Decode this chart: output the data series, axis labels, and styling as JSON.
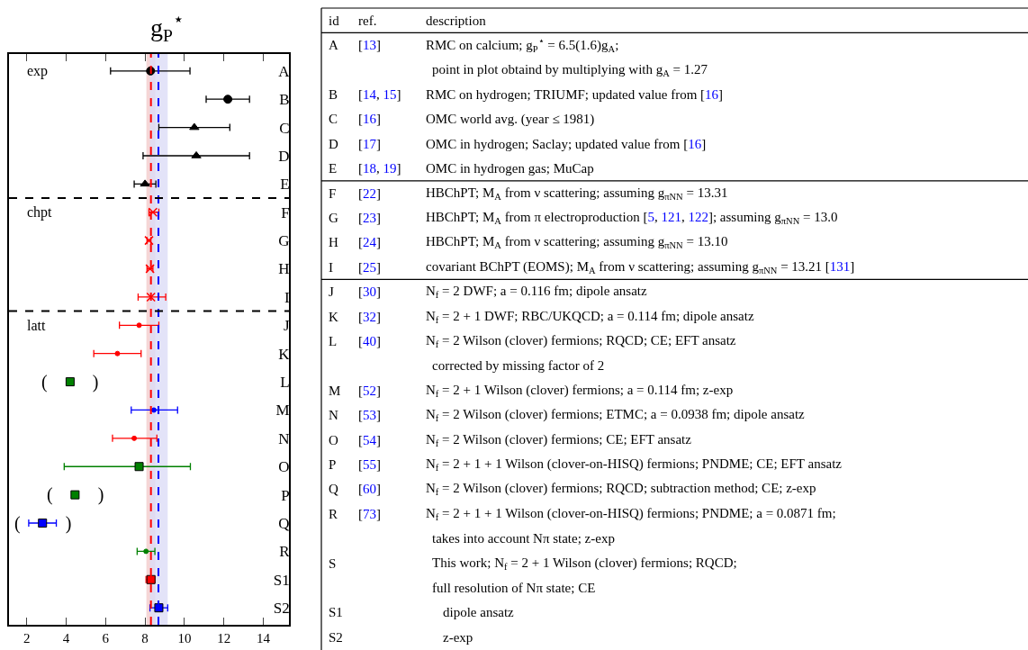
{
  "chart_data": [
    {
      "type": "scatter",
      "orientation": "horizontal",
      "title": "g$_{P}$$^{⋆}$",
      "categories": [
        "A",
        "B",
        "C",
        "D",
        "E",
        "F",
        "G",
        "H",
        "I",
        "J",
        "K",
        "L",
        "M",
        "N",
        "O",
        "P",
        "Q",
        "R",
        "S1",
        "S2"
      ],
      "xlim": [
        1.1,
        15.3
      ],
      "xticks": [
        2,
        4,
        6,
        8,
        10,
        12,
        14
      ],
      "grid": false,
      "series": [
        {
          "color": "#000000",
          "marker": "circle",
          "values": [
            8.28,
            12.2,
            null,
            null,
            null,
            null,
            null,
            null,
            null,
            null,
            null,
            null,
            null,
            null,
            null,
            null,
            null,
            null,
            null,
            null
          ],
          "errors": [
            [
              6.25,
              10.28
            ],
            [
              11.1,
              13.3
            ],
            null,
            null,
            null,
            null,
            null,
            null,
            null,
            null,
            null,
            null,
            null,
            null,
            null,
            null,
            null,
            null,
            null,
            null
          ]
        },
        {
          "color": "#000000",
          "marker": "triangle",
          "values": [
            null,
            null,
            10.5,
            10.6,
            8.0,
            null,
            null,
            null,
            null,
            null,
            null,
            null,
            null,
            null,
            null,
            null,
            null,
            null,
            null,
            null
          ],
          "errors": [
            null,
            null,
            [
              8.7,
              12.3
            ],
            [
              7.9,
              13.3
            ],
            [
              7.45,
              8.55
            ],
            null,
            null,
            null,
            null,
            null,
            null,
            null,
            null,
            null,
            null,
            null,
            null,
            null,
            null,
            null
          ]
        },
        {
          "color": "#ff0000",
          "marker": "cross",
          "values": [
            null,
            null,
            null,
            null,
            null,
            8.4,
            8.2,
            8.25,
            8.3,
            null,
            null,
            null,
            null,
            null,
            null,
            null,
            null,
            null,
            null,
            null
          ],
          "errors": [
            null,
            null,
            null,
            null,
            null,
            [
              8.2,
              8.7
            ],
            [
              8.1,
              8.3
            ],
            [
              8.1,
              8.4
            ],
            [
              7.65,
              9.05
            ],
            null,
            null,
            null,
            null,
            null,
            null,
            null,
            null,
            null,
            null,
            null
          ]
        },
        {
          "color": "#ff0000",
          "marker": "circle",
          "values": [
            null,
            null,
            null,
            null,
            null,
            null,
            null,
            null,
            null,
            7.7,
            6.6,
            null,
            null,
            7.45,
            null,
            null,
            null,
            null,
            null,
            null
          ],
          "errors": [
            null,
            null,
            null,
            null,
            null,
            null,
            null,
            null,
            null,
            [
              6.7,
              8.7
            ],
            [
              5.4,
              7.8
            ],
            null,
            null,
            [
              6.35,
              8.6
            ],
            null,
            null,
            null,
            null,
            null,
            null
          ]
        },
        {
          "color": "#0000ff",
          "marker": "circle",
          "values": [
            null,
            null,
            null,
            null,
            null,
            null,
            null,
            null,
            null,
            null,
            null,
            null,
            8.45,
            null,
            null,
            null,
            null,
            null,
            null,
            null
          ],
          "errors": [
            null,
            null,
            null,
            null,
            null,
            null,
            null,
            null,
            null,
            null,
            null,
            null,
            [
              7.3,
              9.65
            ],
            null,
            null,
            null,
            null,
            null,
            null,
            null
          ]
        },
        {
          "color": "#008000",
          "marker": "square",
          "values": [
            null,
            null,
            null,
            null,
            null,
            null,
            null,
            null,
            null,
            null,
            null,
            4.2,
            null,
            null,
            7.7,
            4.45,
            null,
            null,
            null,
            null
          ],
          "errors": [
            null,
            null,
            null,
            null,
            null,
            null,
            null,
            null,
            null,
            null,
            null,
            null,
            null,
            null,
            [
              3.9,
              10.3
            ],
            null,
            null,
            null,
            null,
            null
          ]
        },
        {
          "color": "#0000ff",
          "marker": "square",
          "values": [
            null,
            null,
            null,
            null,
            null,
            null,
            null,
            null,
            null,
            null,
            null,
            null,
            null,
            null,
            null,
            null,
            2.8,
            null,
            null,
            null
          ],
          "errors": [
            null,
            null,
            null,
            null,
            null,
            null,
            null,
            null,
            null,
            null,
            null,
            null,
            null,
            null,
            null,
            null,
            [
              2.1,
              3.5
            ],
            null,
            null,
            null
          ]
        },
        {
          "color": "#008000",
          "marker": "circle",
          "values": [
            null,
            null,
            null,
            null,
            null,
            null,
            null,
            null,
            null,
            null,
            null,
            null,
            null,
            null,
            null,
            null,
            null,
            8.05,
            null,
            null
          ],
          "errors": [
            null,
            null,
            null,
            null,
            null,
            null,
            null,
            null,
            null,
            null,
            null,
            null,
            null,
            null,
            null,
            null,
            null,
            [
              7.6,
              8.5
            ],
            null,
            null
          ]
        },
        {
          "color": "#ff0000",
          "marker": "square",
          "values": [
            null,
            null,
            null,
            null,
            null,
            null,
            null,
            null,
            null,
            null,
            null,
            null,
            null,
            null,
            null,
            null,
            null,
            null,
            8.3,
            null
          ],
          "errors": [
            null,
            null,
            null,
            null,
            null,
            null,
            null,
            null,
            null,
            null,
            null,
            null,
            null,
            null,
            null,
            null,
            null,
            null,
            [
              8.05,
              8.5
            ],
            null
          ]
        },
        {
          "color": "#0000ff",
          "marker": "square",
          "values": [
            null,
            null,
            null,
            null,
            null,
            null,
            null,
            null,
            null,
            null,
            null,
            null,
            null,
            null,
            null,
            null,
            null,
            null,
            null,
            8.7
          ],
          "errors": [
            null,
            null,
            null,
            null,
            null,
            null,
            null,
            null,
            null,
            null,
            null,
            null,
            null,
            null,
            null,
            null,
            null,
            null,
            null,
            [
              8.25,
              9.15
            ]
          ]
        }
      ],
      "ref_lines": [
        {
          "axis": "x",
          "value": 8.3,
          "color": "#ff0000",
          "line_style": "dashed"
        },
        {
          "axis": "x",
          "value": 8.68,
          "color": "#0000ff",
          "line_style": "dashed"
        }
      ],
      "bands": [
        {
          "axis": "x",
          "from": 8.07,
          "to": 8.52,
          "color": "#f3cccc"
        },
        {
          "axis": "x",
          "from": 8.25,
          "to": 9.15,
          "color": "#dcdcf6"
        }
      ],
      "annotations": [
        "exp",
        "chpt",
        "latt",
        {
          "text": "(          )",
          "x": 4.2,
          "y": "L"
        },
        {
          "text": "(          )",
          "x": 4.45,
          "y": "P"
        },
        {
          "text": "(          )",
          "x": 2.8,
          "y": "Q"
        }
      ]
    },
    {
      "type": "other",
      "annotations": [
        "id\tref.\tdescription",
        "A\t[13]\tRMC on calcium; g$_{P}$$^{⋆}$ = 6.5(1.6)g$_{A}$;",
        "\t\tpoint in plot obtaind by multiplying with g$_{A}$ = 1.27",
        "B\t[14, 15]\tRMC on hydrogen; TRIUMF; updated value from [16]",
        "C\t[16]\tOMC world avg. (year ≤ 1981)",
        "D\t[17]\tOMC in hydrogen; Saclay; updated value from [16]",
        "E\t[18, 19]\tOMC in hydrogen gas; MuCap",
        "F\t[22]\tHBChPT; M$_{A}$ from ν scattering; assuming g$_{πNN}$ = 13.31",
        "G\t[23]\tHBChPT; M$_{A}$ from π electroproduction [5, 121, 122]; assuming g$_{πNN}$ = 13.0",
        "H\t[24]\tHBChPT; M$_{A}$ from ν scattering; assuming g$_{πNN}$ = 13.10",
        "I\t[25]\tcovariant BChPT (EOMS); M$_{A}$ from ν scattering; assuming g$_{πNN}$ = 13.21 [131]",
        "J\t[30]\tN$_{f}$ = 2 DWF; a = 0.116 fm; dipole ansatz",
        "K\t[32]\tN$_{f}$ = 2 + 1 DWF; RBC/UKQCD; a = 0.114 fm; dipole ansatz",
        "L\t[40]\tN$_{f}$ = 2 Wilson (clover) fermions; RQCD; CE; EFT ansatz",
        "\t\tcorrected by missing factor of 2",
        "M\t[52]\tN$_{f}$ = 2 + 1 Wilson (clover) fermions; a = 0.114 fm; z-exp",
        "N\t[53]\tN$_{f}$ = 2 Wilson (clover) fermions; ETMC; a = 0.0938 fm; dipole ansatz",
        "O\t[54]\tN$_{f}$ = 2 Wilson (clover) fermions; CE; EFT ansatz",
        "P\t[55]\tN$_{f}$ = 2 + 1 + 1 Wilson (clover-on-HISQ) fermions; PNDME; CE; EFT ansatz",
        "Q\t[60]\tN$_{f}$ = 2 Wilson (clover) fermions; RQCD; subtraction method; CE; z-exp",
        "R\t[73]\tN$_{f}$ = 2 + 1 + 1 Wilson (clover-on-HISQ) fermions; PNDME; a = 0.0871 fm;",
        "\t\ttakes into account Nπ state; z-exp",
        "S\t",
        "\t\tThis work; N$_{f}$ = 2 + 1 Wilson (clover) fermions; RQCD;",
        "\t\tfull resolution of Nπ state; CE",
        "S1\t",
        "\t\t  dipole ansatz",
        "S2\t",
        "\t\t  z-exp"
      ]
    }
  ]
}
